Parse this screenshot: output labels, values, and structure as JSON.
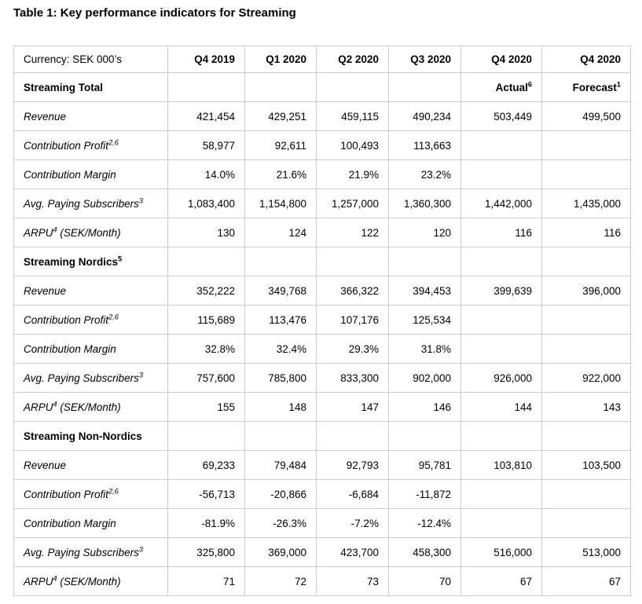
{
  "title": "Table 1: Key performance indicators for Streaming",
  "colors": {
    "background": "#ffffff",
    "text": "#000000",
    "table_border": "#cccccc"
  },
  "table": {
    "header": [
      "Currency: SEK 000’s",
      "Q4 2019",
      "Q1 2020",
      "Q2 2020",
      "Q3 2020",
      "Q4 2020",
      "Q4 2020"
    ],
    "rows": [
      {
        "kind": "section",
        "label": [
          [
            "Streaming Total",
            false
          ]
        ],
        "cells": [
          "",
          "",
          "",
          "",
          [
            [
              "Actual",
              false
            ],
            [
              "6",
              true
            ]
          ],
          [
            [
              "Forecast",
              false
            ],
            [
              "1",
              true
            ]
          ]
        ]
      },
      {
        "kind": "metric",
        "label": [
          [
            "Revenue",
            false
          ]
        ],
        "cells": [
          "421,454",
          "429,251",
          "459,115",
          "490,234",
          "503,449",
          "499,500"
        ]
      },
      {
        "kind": "metric",
        "label": [
          [
            "Contribution Profit",
            false
          ],
          [
            "2,6",
            true
          ]
        ],
        "cells": [
          "58,977",
          "92,611",
          "100,493",
          "113,663",
          "",
          ""
        ]
      },
      {
        "kind": "metric",
        "label": [
          [
            "Contribution Margin",
            false
          ]
        ],
        "cells": [
          "14.0%",
          "21.6%",
          "21.9%",
          "23.2%",
          "",
          ""
        ]
      },
      {
        "kind": "metric",
        "label": [
          [
            "Avg. Paying Subscribers",
            false
          ],
          [
            "3",
            true
          ]
        ],
        "cells": [
          "1,083,400",
          "1,154,800",
          "1,257,000",
          "1,360,300",
          "1,442,000",
          "1,435,000"
        ]
      },
      {
        "kind": "metric",
        "label": [
          [
            "ARPU",
            false
          ],
          [
            "4",
            true
          ],
          [
            " (SEK/Month)",
            false
          ]
        ],
        "cells": [
          "130",
          "124",
          "122",
          "120",
          "116",
          "116"
        ]
      },
      {
        "kind": "section",
        "label": [
          [
            "Streaming Nordics",
            false
          ],
          [
            "5",
            true
          ]
        ],
        "cells": [
          "",
          "",
          "",
          "",
          "",
          ""
        ]
      },
      {
        "kind": "metric",
        "label": [
          [
            "Revenue",
            false
          ]
        ],
        "cells": [
          "352,222",
          "349,768",
          "366,322",
          "394,453",
          "399,639",
          "396,000"
        ]
      },
      {
        "kind": "metric",
        "label": [
          [
            "Contribution Profit",
            false
          ],
          [
            "2,6",
            true
          ]
        ],
        "cells": [
          "115,689",
          "113,476",
          "107,176",
          "125,534",
          "",
          ""
        ]
      },
      {
        "kind": "metric",
        "label": [
          [
            "Contribution Margin",
            false
          ]
        ],
        "cells": [
          "32.8%",
          "32.4%",
          "29.3%",
          "31.8%",
          "",
          ""
        ]
      },
      {
        "kind": "metric",
        "label": [
          [
            "Avg. Paying Subscribers",
            false
          ],
          [
            "3",
            true
          ]
        ],
        "cells": [
          "757,600",
          "785,800",
          "833,300",
          "902,000",
          "926,000",
          "922,000"
        ]
      },
      {
        "kind": "metric",
        "label": [
          [
            "ARPU",
            false
          ],
          [
            "4",
            true
          ],
          [
            " (SEK/Month)",
            false
          ]
        ],
        "cells": [
          "155",
          "148",
          "147",
          "146",
          "144",
          "143"
        ]
      },
      {
        "kind": "section",
        "label": [
          [
            "Streaming Non-Nordics",
            false
          ]
        ],
        "cells": [
          "",
          "",
          "",
          "",
          "",
          ""
        ]
      },
      {
        "kind": "metric",
        "label": [
          [
            "Revenue",
            false
          ]
        ],
        "cells": [
          "69,233",
          "79,484",
          "92,793",
          "95,781",
          "103,810",
          "103,500"
        ]
      },
      {
        "kind": "metric",
        "label": [
          [
            "Contribution Profit",
            false
          ],
          [
            "2,6",
            true
          ]
        ],
        "cells": [
          "-56,713",
          "-20,866",
          "-6,684",
          "-11,872",
          "",
          ""
        ]
      },
      {
        "kind": "metric",
        "label": [
          [
            "Contribution Margin",
            false
          ]
        ],
        "cells": [
          "-81.9%",
          "-26.3%",
          "-7.2%",
          "-12.4%",
          "",
          ""
        ]
      },
      {
        "kind": "metric",
        "label": [
          [
            "Avg. Paying Subscribers",
            false
          ],
          [
            "3",
            true
          ]
        ],
        "cells": [
          "325,800",
          "369,000",
          "423,700",
          "458,300",
          "516,000",
          "513,000"
        ]
      },
      {
        "kind": "metric",
        "label": [
          [
            "ARPU",
            false
          ],
          [
            "4",
            true
          ],
          [
            " (SEK/Month)",
            false
          ]
        ],
        "cells": [
          "71",
          "72",
          "73",
          "70",
          "67",
          "67"
        ]
      }
    ]
  }
}
